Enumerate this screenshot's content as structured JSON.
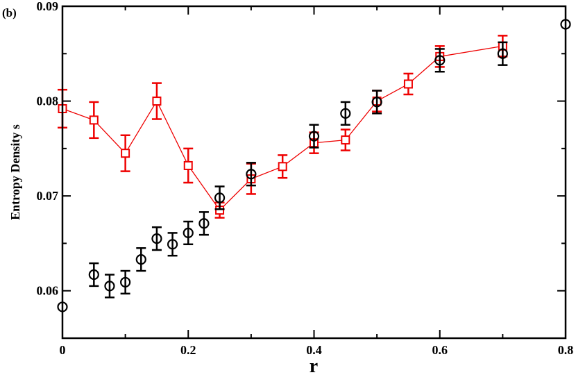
{
  "panel_label": "(b)",
  "chart_data": {
    "type": "scatter",
    "title": "",
    "xlabel": "r",
    "ylabel": "Entropy Density s",
    "xlim": [
      0,
      0.8
    ],
    "ylim": [
      0.055,
      0.09
    ],
    "xticks": [
      0,
      0.2,
      0.4,
      0.6,
      0.8
    ],
    "xtick_labels": [
      "0",
      "0.2",
      "0.4",
      "0.6",
      "0.8"
    ],
    "yticks": [
      0.06,
      0.07,
      0.08,
      0.09
    ],
    "ytick_labels": [
      "0.06",
      "0.07",
      "0.08",
      "0.09"
    ],
    "grid": false,
    "legend": "none",
    "series": [
      {
        "marker": "square",
        "color": "#ee0000",
        "connected": true,
        "points": [
          {
            "x": 0.0,
            "y": 0.0792,
            "err": 0.002
          },
          {
            "x": 0.05,
            "y": 0.078,
            "err": 0.0019
          },
          {
            "x": 0.1,
            "y": 0.0745,
            "err": 0.0019
          },
          {
            "x": 0.15,
            "y": 0.08,
            "err": 0.0019
          },
          {
            "x": 0.2,
            "y": 0.0732,
            "err": 0.0018
          },
          {
            "x": 0.25,
            "y": 0.0685,
            "err": 0.0008
          },
          {
            "x": 0.3,
            "y": 0.0718,
            "err": 0.0016
          },
          {
            "x": 0.35,
            "y": 0.0731,
            "err": 0.0012
          },
          {
            "x": 0.4,
            "y": 0.0756,
            "err": 0.0011
          },
          {
            "x": 0.45,
            "y": 0.0759,
            "err": 0.0011
          },
          {
            "x": 0.5,
            "y": 0.08,
            "err": 0.0011
          },
          {
            "x": 0.55,
            "y": 0.0818,
            "err": 0.0011
          },
          {
            "x": 0.6,
            "y": 0.0847,
            "err": 0.0011
          },
          {
            "x": 0.7,
            "y": 0.0858,
            "err": 0.0011
          }
        ]
      },
      {
        "marker": "circle",
        "color": "#000000",
        "connected": false,
        "points": [
          {
            "x": 0.0,
            "y": 0.0583,
            "err": 0
          },
          {
            "x": 0.05,
            "y": 0.0617,
            "err": 0.0012
          },
          {
            "x": 0.075,
            "y": 0.0605,
            "err": 0.0012
          },
          {
            "x": 0.1,
            "y": 0.0609,
            "err": 0.0012
          },
          {
            "x": 0.125,
            "y": 0.0633,
            "err": 0.0012
          },
          {
            "x": 0.15,
            "y": 0.0655,
            "err": 0.0012
          },
          {
            "x": 0.175,
            "y": 0.0649,
            "err": 0.0012
          },
          {
            "x": 0.2,
            "y": 0.0661,
            "err": 0.0012
          },
          {
            "x": 0.225,
            "y": 0.0671,
            "err": 0.0012
          },
          {
            "x": 0.25,
            "y": 0.0698,
            "err": 0.0012
          },
          {
            "x": 0.3,
            "y": 0.0723,
            "err": 0.0012
          },
          {
            "x": 0.4,
            "y": 0.0763,
            "err": 0.0012
          },
          {
            "x": 0.45,
            "y": 0.0787,
            "err": 0.0012
          },
          {
            "x": 0.5,
            "y": 0.0799,
            "err": 0.0012
          },
          {
            "x": 0.6,
            "y": 0.0843,
            "err": 0.0012
          },
          {
            "x": 0.7,
            "y": 0.085,
            "err": 0.0012
          },
          {
            "x": 0.8,
            "y": 0.0881,
            "err": 0
          }
        ]
      }
    ]
  }
}
